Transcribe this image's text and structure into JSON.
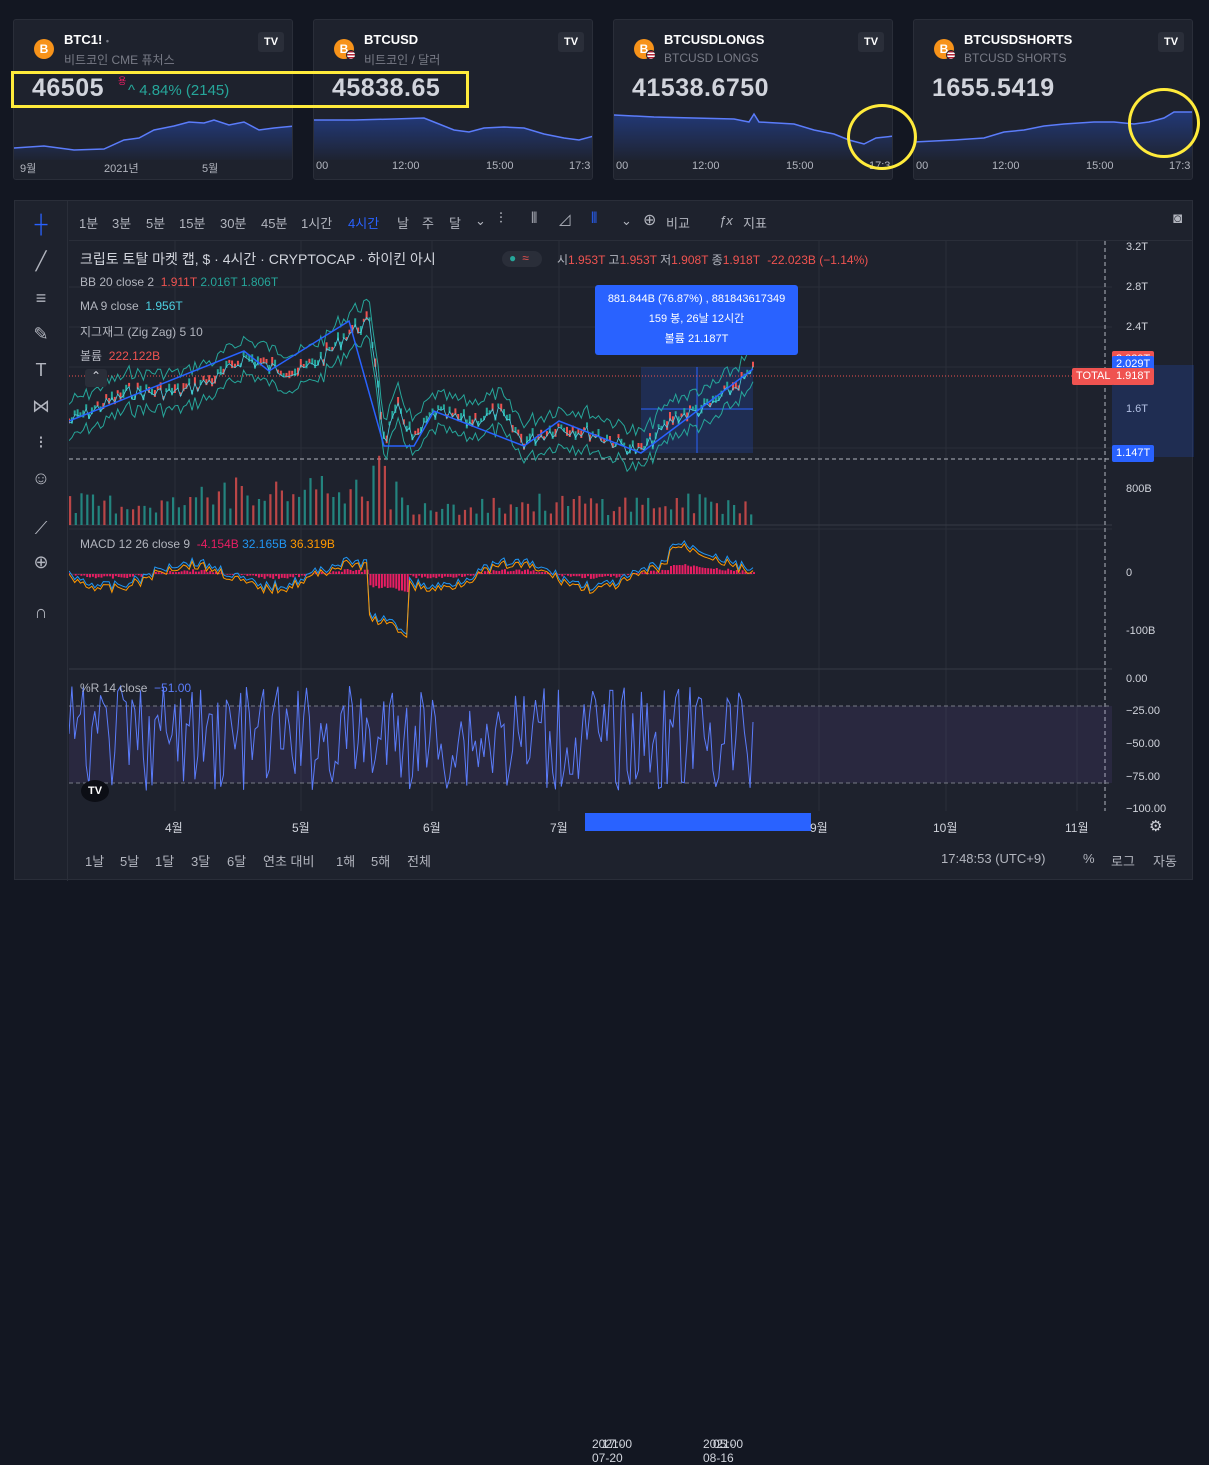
{
  "tiles": [
    {
      "symbol": "BTC1!",
      "symbol_suffix": "•",
      "desc": "비트코인 CME 퓨처스",
      "price": "46505",
      "price_sup": "용",
      "change": "^ 4.84% (2145)",
      "axis": [
        "9월",
        "2021년",
        "5월"
      ],
      "logo": "B"
    },
    {
      "symbol": "BTCUSD",
      "desc": "비트코인 / 달러",
      "price": "45838.65",
      "axis": [
        "00",
        "12:00",
        "15:00",
        "17:3"
      ],
      "logo": "B"
    },
    {
      "symbol": "BTCUSDLONGS",
      "desc": "BTCUSD LONGS",
      "price": "41538.6750",
      "axis": [
        "00",
        "12:00",
        "15:00",
        "17:3"
      ],
      "logo": "B"
    },
    {
      "symbol": "BTCUSDSHORTS",
      "desc": "BTCUSD SHORTS",
      "price": "1655.5419",
      "axis": [
        "00",
        "12:00",
        "15:00",
        "17:3"
      ],
      "logo": "B"
    }
  ],
  "tv_logo": "TV",
  "toolbar": {
    "intervals": [
      "1분",
      "3분",
      "5분",
      "15분",
      "30분",
      "45분",
      "1시간",
      "4시간",
      "날",
      "주",
      "달"
    ],
    "active_interval": "4시간",
    "compare": "비교",
    "indicators": "지표"
  },
  "legend": {
    "title": "크립토 토탈 마켓 캡, $ · 4시간 · CRYPTOCAP · 하이킨 아시",
    "ohlc": {
      "o_label": "시",
      "o": "1.953T",
      "h_label": "고",
      "h": "1.953T",
      "l_label": "저",
      "l": "1.908T",
      "c_label": "종",
      "c": "1.918T",
      "chg": "-22.023B (−1.14%)"
    },
    "bb": {
      "name": "BB 20 close 2",
      "v1": "1.911T",
      "v2": "2.016T",
      "v3": "1.806T"
    },
    "ma": {
      "name": "MA 9 close",
      "v": "1.956T"
    },
    "zz": {
      "name": "지그재그 (Zig Zag) 5 10"
    },
    "vol": {
      "name": "볼륨",
      "v": "222.122B"
    },
    "macd": {
      "name": "MACD 12 26 close 9",
      "v1": "-4.154B",
      "v2": "32.165B",
      "v3": "36.319B"
    },
    "wr": {
      "name": "%R 14 close",
      "v": "−51.00"
    }
  },
  "tooltip": {
    "line1": "881.844B (76.87%) , 881843617349",
    "line2": "159 봉, 26날 12시간",
    "line3": "볼륨 21.187T"
  },
  "price_axis": [
    "3.2T",
    "2.8T",
    "2.4T",
    "1.6T",
    "800B",
    "0",
    "-100B",
    "0.00",
    "−25.00",
    "−50.00",
    "−75.00",
    "−100.00"
  ],
  "tags": {
    "total": "TOTAL",
    "t1": "2.029T",
    "t2": "1.918T",
    "t3": "1.147T",
    "t_hidden": "2.029T"
  },
  "time_axis": [
    "4월",
    "5월",
    "6월",
    "7월",
    "9월",
    "10월",
    "11월"
  ],
  "time_range": {
    "start": "2021-07-20",
    "start_t": "17:00",
    "end": "2021-08-16",
    "end_t": "05:00"
  },
  "bottom": {
    "ranges": [
      "1날",
      "5날",
      "1달",
      "3달",
      "6달",
      "연초 대비",
      "1해",
      "5해",
      "전체"
    ],
    "clock": "17:48:53 (UTC+9)",
    "pct": "%",
    "log": "로그",
    "auto": "자동"
  },
  "colors": {
    "bg": "#131722",
    "panel": "#1e222d",
    "blue": "#2962ff",
    "red": "#ef5350",
    "green": "#26a69a",
    "yellow": "#ffeb3b"
  }
}
